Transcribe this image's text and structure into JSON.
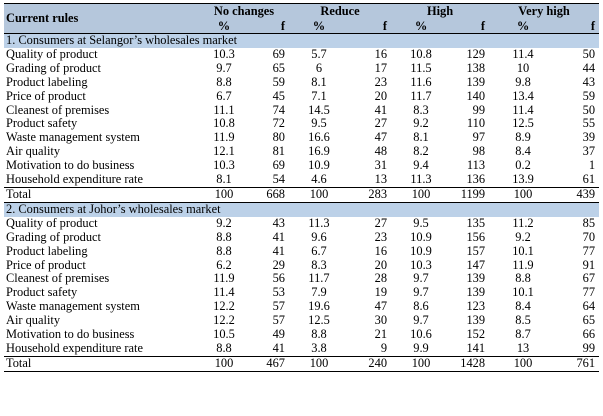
{
  "header": {
    "rules_label": "Current rules",
    "groups": [
      "No changes",
      "Reduce",
      "High",
      "Very high"
    ],
    "pct": "%",
    "freq": "f"
  },
  "sections": [
    {
      "title": "1. Consumers at Selangor’s wholesales market",
      "rows": [
        {
          "label": "Quality of product",
          "v": [
            "10.3",
            "69",
            "5.7",
            "16",
            "10.8",
            "129",
            "11.4",
            "50"
          ]
        },
        {
          "label": "Grading of product",
          "v": [
            "9.7",
            "65",
            "6",
            "17",
            "11.5",
            "138",
            "10",
            "44"
          ]
        },
        {
          "label": "Product labeling",
          "v": [
            "8.8",
            "59",
            "8.1",
            "23",
            "11.6",
            "139",
            "9.8",
            "43"
          ]
        },
        {
          "label": "Price of product",
          "v": [
            "6.7",
            "45",
            "7.1",
            "20",
            "11.7",
            "140",
            "13.4",
            "59"
          ]
        },
        {
          "label": "Cleanest of premises",
          "v": [
            "11.1",
            "74",
            "14.5",
            "41",
            "8.3",
            "99",
            "11.4",
            "50"
          ]
        },
        {
          "label": "Product safety",
          "v": [
            "10.8",
            "72",
            "9.5",
            "27",
            "9.2",
            "110",
            "12.5",
            "55"
          ]
        },
        {
          "label": "Waste management system",
          "v": [
            "11.9",
            "80",
            "16.6",
            "47",
            "8.1",
            "97",
            "8.9",
            "39"
          ]
        },
        {
          "label": "Air quality",
          "v": [
            "12.1",
            "81",
            "16.9",
            "48",
            "8.2",
            "98",
            "8.4",
            "37"
          ]
        },
        {
          "label": "Motivation to do business",
          "v": [
            "10.3",
            "69",
            "10.9",
            "31",
            "9.4",
            "113",
            "0.2",
            "1"
          ]
        },
        {
          "label": "Household expenditure rate",
          "v": [
            "8.1",
            "54",
            "4.6",
            "13",
            "11.3",
            "136",
            "13.9",
            "61"
          ]
        }
      ],
      "total": {
        "label": "Total",
        "v": [
          "100",
          "668",
          "100",
          "283",
          "100",
          "1199",
          "100",
          "439"
        ]
      }
    },
    {
      "title": "2. Consumers at Johor’s wholesales market",
      "rows": [
        {
          "label": "Quality of product",
          "v": [
            "9.2",
            "43",
            "11.3",
            "27",
            "9.5",
            "135",
            "11.2",
            "85"
          ]
        },
        {
          "label": "Grading of product",
          "v": [
            "8.8",
            "41",
            "9.6",
            "23",
            "10.9",
            "156",
            "9.2",
            "70"
          ]
        },
        {
          "label": "Product labeling",
          "v": [
            "8.8",
            "41",
            "6.7",
            "16",
            "10.9",
            "157",
            "10.1",
            "77"
          ]
        },
        {
          "label": "Price of product",
          "v": [
            "6.2",
            "29",
            "8.3",
            "20",
            "10.3",
            "147",
            "11.9",
            "91"
          ]
        },
        {
          "label": "Cleanest of premises",
          "v": [
            "11.9",
            "56",
            "11.7",
            "28",
            "9.7",
            "139",
            "8.8",
            "67"
          ]
        },
        {
          "label": "Product safety",
          "v": [
            "11.4",
            "53",
            "7.9",
            "19",
            "9.7",
            "139",
            "10.1",
            "77"
          ]
        },
        {
          "label": "Waste management system",
          "v": [
            "12.2",
            "57",
            "19.6",
            "47",
            "8.6",
            "123",
            "8.4",
            "64"
          ]
        },
        {
          "label": "Air quality",
          "v": [
            "12.2",
            "57",
            "12.5",
            "30",
            "9.7",
            "139",
            "8.5",
            "65"
          ]
        },
        {
          "label": "Motivation to do business",
          "v": [
            "10.5",
            "49",
            "8.8",
            "21",
            "10.6",
            "152",
            "8.7",
            "66"
          ]
        },
        {
          "label": "Household expenditure rate",
          "v": [
            "8.8",
            "41",
            "3.8",
            "9",
            "9.9",
            "141",
            "13",
            "99"
          ]
        }
      ],
      "total": {
        "label": "Total",
        "v": [
          "100",
          "467",
          "100",
          "240",
          "100",
          "1428",
          "100",
          "761"
        ]
      }
    }
  ]
}
